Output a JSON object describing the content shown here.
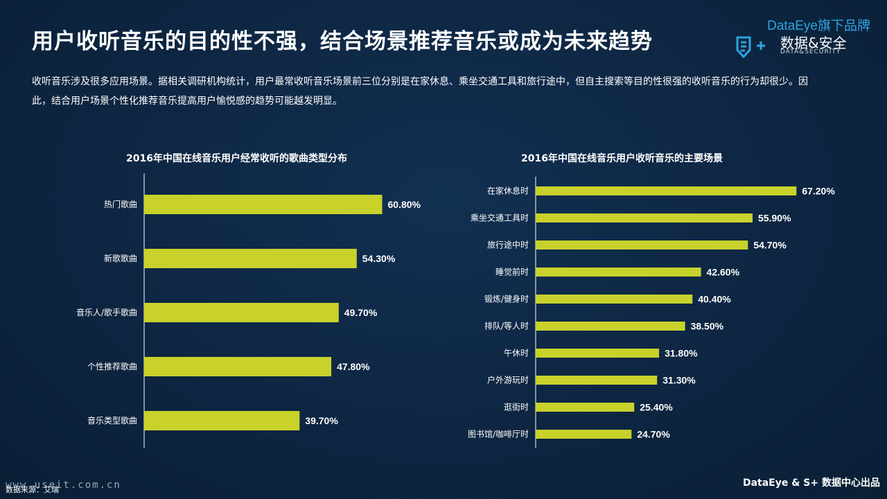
{
  "header": {
    "title": "用户收听音乐的目的性不强，结合场景推荐音乐或成为未来趋势",
    "brand_top": "DataEye旗下品牌",
    "brand_cn": "数据&安全",
    "brand_en": "DATA&SECURITY"
  },
  "intro": "收听音乐涉及很多应用场景。据相关调研机构统计，用户最常收听音乐场景前三位分别是在家休息、乘坐交通工具和旅行途中，但自主搜索等目的性很强的收听音乐的行为却很少。因此，结合用户场景个性化推荐音乐提高用户愉悦感的趋势可能越发明显。",
  "footer": {
    "source": "数据来源：艾瑞",
    "watermark": "www.useit.com.cn",
    "brand": "DataEye & S+ 数据中心出品"
  },
  "colors": {
    "bar": "#c8d22b",
    "background": "#0d2540",
    "brand_blue": "#2fa3e0"
  },
  "chart_data": [
    {
      "type": "bar",
      "orientation": "horizontal",
      "title": "2016年中国在线音乐用户经常收听的歌曲类型分布",
      "categories": [
        "热门歌曲",
        "新歌歌曲",
        "音乐人/歌手歌曲",
        "个性推荐歌曲",
        "音乐类型歌曲"
      ],
      "values": [
        60.8,
        54.3,
        49.7,
        47.8,
        39.7
      ],
      "value_labels": [
        "60.80%",
        "54.30%",
        "49.70%",
        "47.80%",
        "39.70%"
      ],
      "xlim": [
        0,
        70
      ]
    },
    {
      "type": "bar",
      "orientation": "horizontal",
      "title": "2016年中国在线音乐用户收听音乐的主要场景",
      "categories": [
        "在家休息时",
        "乘坐交通工具时",
        "旅行途中时",
        "睡觉前时",
        "锻炼/健身时",
        "排队/等人时",
        "午休时",
        "户外游玩时",
        "逛街时",
        "图书馆/咖啡厅时"
      ],
      "values": [
        67.2,
        55.9,
        54.7,
        42.6,
        40.4,
        38.5,
        31.8,
        31.3,
        25.4,
        24.7
      ],
      "value_labels": [
        "67.20%",
        "55.90%",
        "54.70%",
        "42.60%",
        "40.40%",
        "38.50%",
        "31.80%",
        "31.30%",
        "25.40%",
        "24.70%"
      ],
      "xlim": [
        0,
        70
      ]
    }
  ]
}
